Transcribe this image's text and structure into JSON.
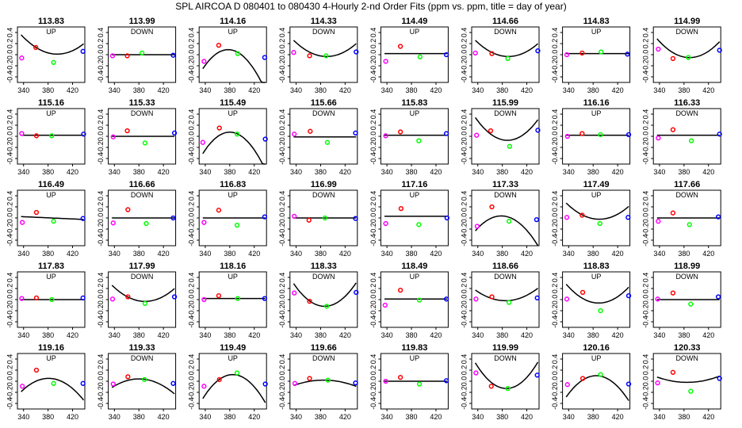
{
  "title": "SPL   AIRCOA D   080401 to 080430   4-Hourly 2-nd Order Fits (ppm vs. ppm, title = day of year)",
  "colors": {
    "point_colors": [
      "#ff00ff",
      "#ff0000",
      "#00ff00",
      "#0000ff"
    ],
    "fit": "#000000"
  },
  "chart_data": {
    "type": "scatter",
    "x_ticks": [
      "340",
      "380",
      "420"
    ],
    "y_ticks": [
      "0.4",
      "0.2",
      "0.0",
      "-0.2",
      "-0.4"
    ],
    "xlim": [
      330,
      440
    ],
    "ylim": [
      -0.5,
      0.5
    ],
    "panels": [
      {
        "day": "113.83",
        "label": "UP",
        "points": [
          [
            337,
            -0.06
          ],
          [
            360,
            0.13
          ],
          [
            389,
            -0.14
          ],
          [
            437,
            0.06
          ]
        ],
        "fit": [
          0.02,
          -0.002,
          0.0001
        ]
      },
      {
        "day": "113.99",
        "label": "DOWN",
        "points": [
          [
            337,
            -0.02
          ],
          [
            361,
            -0.02
          ],
          [
            385,
            0.03
          ],
          [
            436,
            -0.01
          ]
        ],
        "fit": [
          0.0,
          0.0,
          0.0
        ]
      },
      {
        "day": "114.16",
        "label": "UP",
        "points": [
          [
            338,
            -0.12
          ],
          [
            362,
            0.17
          ],
          [
            393,
            0.02
          ],
          [
            437,
            -0.05
          ]
        ],
        "fit": [
          0.08,
          -0.003,
          -0.0002
        ]
      },
      {
        "day": "114.33",
        "label": "DOWN",
        "points": [
          [
            336,
            0.04
          ],
          [
            362,
            -0.02
          ],
          [
            389,
            -0.02
          ],
          [
            438,
            0.05
          ]
        ],
        "fit": [
          -0.03,
          -0.001,
          0.0001
        ]
      },
      {
        "day": "114.49",
        "label": "UP",
        "points": [
          [
            338,
            -0.12
          ],
          [
            362,
            0.15
          ],
          [
            394,
            -0.04
          ],
          [
            437,
            0.0
          ]
        ],
        "fit": [
          0.02,
          0.0,
          0.0
        ]
      },
      {
        "day": "114.66",
        "label": "DOWN",
        "points": [
          [
            336,
            0.03
          ],
          [
            363,
            0.02
          ],
          [
            389,
            -0.07
          ],
          [
            438,
            0.07
          ]
        ],
        "fit": [
          -0.03,
          -0.001,
          0.0001
        ]
      },
      {
        "day": "114.83",
        "label": "UP",
        "points": [
          [
            337,
            0.0
          ],
          [
            362,
            0.03
          ],
          [
            393,
            0.05
          ],
          [
            436,
            0.01
          ]
        ],
        "fit": [
          0.02,
          0.0,
          0.0
        ]
      },
      {
        "day": "114.99",
        "label": "DOWN",
        "points": [
          [
            338,
            0.1
          ],
          [
            362,
            -0.07
          ],
          [
            387,
            -0.05
          ],
          [
            438,
            0.08
          ]
        ],
        "fit": [
          -0.05,
          -0.001,
          0.00012
        ]
      },
      {
        "day": "115.16",
        "label": "UP",
        "points": [
          [
            337,
            0.05
          ],
          [
            361,
            0.01
          ],
          [
            386,
            0.01
          ],
          [
            438,
            0.04
          ]
        ],
        "fit": [
          0.02,
          0.0,
          0.0
        ]
      },
      {
        "day": "115.33",
        "label": "DOWN",
        "points": [
          [
            338,
            -0.01
          ],
          [
            361,
            0.1
          ],
          [
            390,
            -0.12
          ],
          [
            438,
            0.06
          ]
        ],
        "fit": [
          0.0,
          0.0,
          0.0
        ]
      },
      {
        "day": "115.49",
        "label": "UP",
        "points": [
          [
            336,
            -0.11
          ],
          [
            363,
            0.15
          ],
          [
            392,
            0.04
          ],
          [
            438,
            -0.05
          ]
        ],
        "fit": [
          0.07,
          -0.002,
          -0.0002
        ]
      },
      {
        "day": "115.66",
        "label": "DOWN",
        "points": [
          [
            337,
            0.04
          ],
          [
            363,
            0.09
          ],
          [
            391,
            -0.11
          ],
          [
            437,
            0.06
          ]
        ],
        "fit": [
          -0.01,
          0.0,
          0.0
        ]
      },
      {
        "day": "115.83",
        "label": "UP",
        "points": [
          [
            338,
            0.01
          ],
          [
            362,
            0.08
          ],
          [
            392,
            -0.08
          ],
          [
            437,
            0.05
          ]
        ],
        "fit": [
          0.02,
          0.0,
          0.0
        ]
      },
      {
        "day": "115.99",
        "label": "DOWN",
        "points": [
          [
            338,
            0.02
          ],
          [
            361,
            0.1
          ],
          [
            392,
            -0.18
          ],
          [
            438,
            0.11
          ]
        ],
        "fit": [
          -0.07,
          -0.001,
          0.00015
        ]
      },
      {
        "day": "116.16",
        "label": "UP",
        "points": [
          [
            338,
            0.0
          ],
          [
            362,
            0.05
          ],
          [
            392,
            0.03
          ],
          [
            438,
            0.03
          ]
        ],
        "fit": [
          0.02,
          0.0,
          0.0
        ]
      },
      {
        "day": "116.33",
        "label": "DOWN",
        "points": [
          [
            338,
            -0.03
          ],
          [
            362,
            0.12
          ],
          [
            392,
            -0.08
          ],
          [
            438,
            0.04
          ]
        ],
        "fit": [
          0.02,
          0.0,
          0.0
        ]
      },
      {
        "day": "116.49",
        "label": "UP",
        "points": [
          [
            338,
            -0.08
          ],
          [
            361,
            0.1
          ],
          [
            389,
            -0.06
          ],
          [
            437,
            -0.01
          ]
        ],
        "fit": [
          0.0,
          -0.0005,
          0.0
        ]
      },
      {
        "day": "116.66",
        "label": "DOWN",
        "points": [
          [
            338,
            -0.09
          ],
          [
            362,
            0.15
          ],
          [
            392,
            -0.1
          ],
          [
            436,
            0.0
          ]
        ],
        "fit": [
          0.0,
          0.0,
          0.0
        ]
      },
      {
        "day": "116.83",
        "label": "UP",
        "points": [
          [
            338,
            -0.08
          ],
          [
            362,
            0.14
          ],
          [
            392,
            -0.13
          ],
          [
            437,
            0.02
          ]
        ],
        "fit": [
          0.0,
          0.0,
          0.0
        ]
      },
      {
        "day": "116.99",
        "label": "DOWN",
        "points": [
          [
            337,
            0.03
          ],
          [
            361,
            -0.04
          ],
          [
            387,
            0.0
          ],
          [
            437,
            -0.01
          ]
        ],
        "fit": [
          0.0,
          0.0,
          0.0
        ]
      },
      {
        "day": "117.16",
        "label": "UP",
        "points": [
          [
            338,
            -0.1
          ],
          [
            363,
            0.17
          ],
          [
            392,
            -0.12
          ],
          [
            438,
            0.0
          ]
        ],
        "fit": [
          0.03,
          0.0,
          0.0
        ]
      },
      {
        "day": "117.33",
        "label": "DOWN",
        "points": [
          [
            339,
            -0.15
          ],
          [
            363,
            0.2
          ],
          [
            391,
            -0.06
          ],
          [
            436,
            -0.03
          ]
        ],
        "fit": [
          0.03,
          -0.002,
          -0.00015
        ]
      },
      {
        "day": "117.49",
        "label": "UP",
        "points": [
          [
            337,
            0.01
          ],
          [
            362,
            0.05
          ],
          [
            391,
            -0.1
          ],
          [
            437,
            0.01
          ]
        ],
        "fit": [
          -0.02,
          -0.001,
          0.0001
        ]
      },
      {
        "day": "117.66",
        "label": "DOWN",
        "points": [
          [
            338,
            -0.06
          ],
          [
            362,
            0.09
          ],
          [
            389,
            -0.12
          ],
          [
            436,
            0.02
          ]
        ],
        "fit": [
          0.0,
          0.0,
          0.0
        ]
      },
      {
        "day": "117.83",
        "label": "UP",
        "points": [
          [
            337,
            0.02
          ],
          [
            361,
            0.03
          ],
          [
            386,
            0.0
          ],
          [
            437,
            0.03
          ]
        ],
        "fit": [
          0.0,
          0.0,
          0.0
        ]
      },
      {
        "day": "117.99",
        "label": "DOWN",
        "points": [
          [
            337,
            0.01
          ],
          [
            362,
            0.05
          ],
          [
            390,
            -0.07
          ],
          [
            438,
            0.05
          ]
        ],
        "fit": [
          -0.03,
          -0.001,
          0.0001
        ]
      },
      {
        "day": "118.16",
        "label": "UP",
        "points": [
          [
            338,
            0.0
          ],
          [
            362,
            0.07
          ],
          [
            393,
            0.02
          ],
          [
            437,
            0.02
          ]
        ],
        "fit": [
          0.02,
          0.0,
          0.0
        ]
      },
      {
        "day": "118.33",
        "label": "DOWN",
        "points": [
          [
            337,
            0.12
          ],
          [
            362,
            -0.03
          ],
          [
            390,
            -0.12
          ],
          [
            438,
            0.13
          ]
        ],
        "fit": [
          -0.12,
          -0.0005,
          0.00016
        ]
      },
      {
        "day": "118.49",
        "label": "UP",
        "points": [
          [
            337,
            -0.1
          ],
          [
            362,
            0.17
          ],
          [
            393,
            -0.01
          ],
          [
            437,
            0.01
          ]
        ],
        "fit": [
          0.01,
          0.0,
          0.0
        ]
      },
      {
        "day": "118.66",
        "label": "DOWN",
        "points": [
          [
            337,
            0.01
          ],
          [
            363,
            0.05
          ],
          [
            391,
            -0.05
          ],
          [
            437,
            0.03
          ]
        ],
        "fit": [
          -0.02,
          0.0,
          8e-05
        ]
      },
      {
        "day": "118.83",
        "label": "UP",
        "points": [
          [
            337,
            0.01
          ],
          [
            363,
            0.13
          ],
          [
            392,
            -0.2
          ],
          [
            438,
            0.07
          ]
        ],
        "fit": [
          -0.06,
          -0.001,
          0.00012
        ]
      },
      {
        "day": "118.99",
        "label": "DOWN",
        "points": [
          [
            337,
            0.01
          ],
          [
            362,
            0.12
          ],
          [
            391,
            -0.08
          ],
          [
            436,
            0.05
          ]
        ],
        "fit": [
          0.0,
          0.0,
          0.0
        ]
      },
      {
        "day": "119.16",
        "label": "UP",
        "points": [
          [
            338,
            -0.09
          ],
          [
            361,
            0.2
          ],
          [
            389,
            -0.04
          ],
          [
            437,
            -0.04
          ]
        ],
        "fit": [
          0.05,
          -0.001,
          -0.00012
        ]
      },
      {
        "day": "119.33",
        "label": "DOWN",
        "points": [
          [
            338,
            -0.05
          ],
          [
            362,
            0.08
          ],
          [
            389,
            0.03
          ],
          [
            436,
            -0.04
          ]
        ],
        "fit": [
          0.04,
          -0.0008,
          -8e-05
        ]
      },
      {
        "day": "119.49",
        "label": "UP",
        "points": [
          [
            338,
            -0.09
          ],
          [
            363,
            0.03
          ],
          [
            392,
            0.15
          ],
          [
            438,
            -0.05
          ]
        ],
        "fit": [
          0.12,
          0.0,
          -0.00018
        ]
      },
      {
        "day": "119.66",
        "label": "DOWN",
        "points": [
          [
            338,
            -0.04
          ],
          [
            362,
            0.05
          ],
          [
            392,
            0.02
          ],
          [
            437,
            -0.03
          ]
        ],
        "fit": [
          0.02,
          0.0,
          -4e-05
        ]
      },
      {
        "day": "119.83",
        "label": "UP",
        "points": [
          [
            338,
            0.0
          ],
          [
            362,
            0.07
          ],
          [
            393,
            -0.05
          ],
          [
            437,
            0.01
          ]
        ],
        "fit": [
          0.0,
          0.0,
          0.0
        ]
      },
      {
        "day": "119.99",
        "label": "DOWN",
        "points": [
          [
            337,
            0.15
          ],
          [
            362,
            -0.09
          ],
          [
            389,
            -0.13
          ],
          [
            437,
            0.11
          ]
        ],
        "fit": [
          -0.13,
          -0.0006,
          0.00018
        ]
      },
      {
        "day": "120.16",
        "label": "UP",
        "points": [
          [
            338,
            -0.06
          ],
          [
            363,
            0.05
          ],
          [
            392,
            0.12
          ],
          [
            438,
            -0.05
          ]
        ],
        "fit": [
          0.1,
          0.0,
          -0.00016
        ]
      },
      {
        "day": "120.33",
        "label": "DOWN",
        "points": [
          [
            337,
            -0.03
          ],
          [
            362,
            0.16
          ],
          [
            391,
            -0.18
          ],
          [
            438,
            0.05
          ]
        ],
        "fit": [
          -0.02,
          0.0,
          4e-05
        ]
      }
    ]
  }
}
